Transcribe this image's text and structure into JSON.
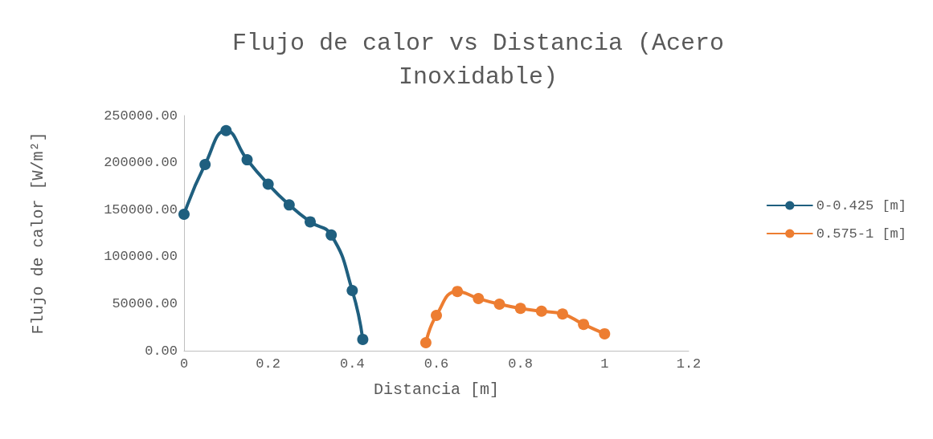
{
  "chart_data": {
    "type": "line",
    "title": "Flujo de calor vs Distancia (Acero\nInoxidable)",
    "xlabel": "Distancia [m]",
    "ylabel": "Flujo de calor [W/m²]",
    "xlim": [
      0,
      1.2
    ],
    "xticks": [
      0,
      0.2,
      0.4,
      0.6,
      0.8,
      1,
      1.2
    ],
    "ylim": [
      0,
      250000
    ],
    "yticks": [
      {
        "value": 0,
        "label": "0.00"
      },
      {
        "value": 50000,
        "label": "50000.00"
      },
      {
        "value": 100000,
        "label": "100000.00"
      },
      {
        "value": 150000,
        "label": "150000.00"
      },
      {
        "value": 200000,
        "label": "200000.00"
      },
      {
        "value": 250000,
        "label": "250000.00"
      }
    ],
    "grid": false,
    "legend": "right",
    "marker": "circle",
    "line_style": "solid",
    "series": [
      {
        "name": "0-0.425 [m]",
        "color": "#1f5f7f",
        "x": [
          0,
          0.05,
          0.1,
          0.15,
          0.2,
          0.25,
          0.3,
          0.35,
          0.4,
          0.425
        ],
        "values": [
          145000,
          198000,
          234000,
          203000,
          177000,
          155000,
          137000,
          123000,
          64000,
          12000
        ]
      },
      {
        "name": "0.575-1 [m]",
        "color": "#ed7d31",
        "x": [
          0.575,
          0.6,
          0.65,
          0.7,
          0.75,
          0.8,
          0.85,
          0.9,
          0.95,
          1
        ],
        "values": [
          8500,
          37500,
          63000,
          55500,
          49500,
          45000,
          42000,
          39000,
          28000,
          18000
        ]
      }
    ]
  }
}
